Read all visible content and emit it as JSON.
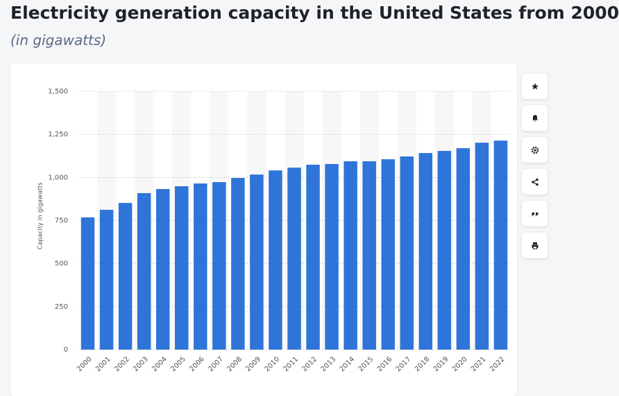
{
  "chart_data": {
    "type": "bar",
    "title": "Electricity generation capacity in the United States from 2000",
    "subtitle": "(in gigawatts)",
    "y_label": "Capacity in gigawatts",
    "categories": [
      "2000",
      "2001",
      "2002",
      "2003",
      "2004",
      "2005",
      "2006",
      "2007",
      "2008",
      "2009",
      "2010",
      "2011",
      "2012",
      "2013",
      "2014",
      "2015",
      "2016",
      "2017",
      "2018",
      "2019",
      "2020",
      "2021",
      "2022"
    ],
    "values": [
      768,
      812,
      852,
      909,
      933,
      949,
      965,
      973,
      997,
      1017,
      1041,
      1057,
      1074,
      1078,
      1094,
      1094,
      1106,
      1122,
      1142,
      1154,
      1170,
      1202,
      1214
    ],
    "color": "#2f74d9",
    "ylim": [
      0,
      1500
    ],
    "yticks": [
      0,
      250,
      500,
      750,
      {
        "value": 1000,
        "label": "1,000"
      },
      {
        "value": 1250,
        "label": "1,250"
      },
      {
        "value": 1500,
        "label": "1,500"
      }
    ],
    "grid": true
  }
}
